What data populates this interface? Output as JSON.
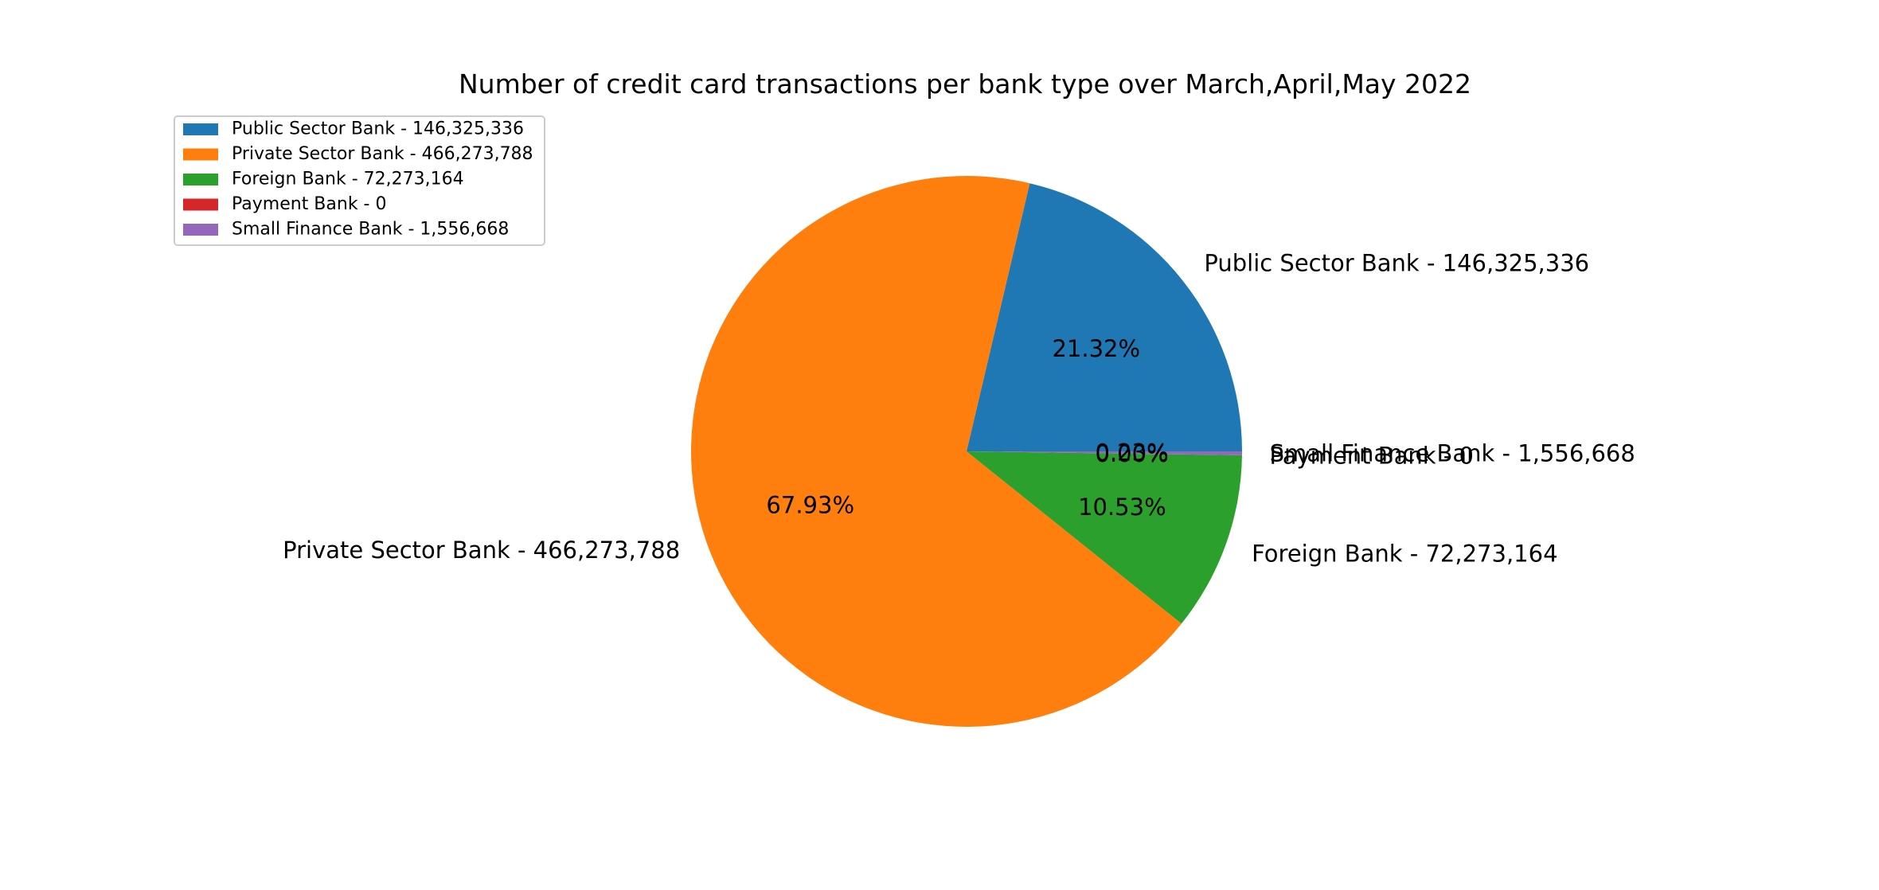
{
  "chart_data": {
    "type": "pie",
    "title": "Number of credit card transactions per bank type over March,April,May 2022",
    "categories": [
      "Public Sector Bank",
      "Private Sector Bank",
      "Foreign Bank",
      "Payment Bank",
      "Small Finance Bank"
    ],
    "values": [
      146325336,
      466273788,
      72273164,
      0,
      1556668
    ],
    "labels": [
      "Public Sector Bank - 146,325,336",
      "Private Sector Bank - 466,273,788",
      "Foreign Bank - 72,273,164",
      "Payment Bank - 0",
      "Small Finance Bank - 1,556,668"
    ],
    "percent_labels": [
      "21.32%",
      "67.93%",
      "10.53%",
      "0.00%",
      "0.23%"
    ],
    "colors": [
      "#1f77b4",
      "#ff7f0e",
      "#2ca02c",
      "#d62728",
      "#9467bd"
    ],
    "start_angle_deg": 0,
    "direction": "counterclockwise",
    "legend": {
      "location": "upper-left",
      "entries": [
        "Public Sector Bank - 146,325,336",
        "Private Sector Bank - 466,273,788",
        "Foreign Bank - 72,273,164",
        "Payment Bank - 0",
        "Small Finance Bank - 1,556,668"
      ]
    }
  }
}
